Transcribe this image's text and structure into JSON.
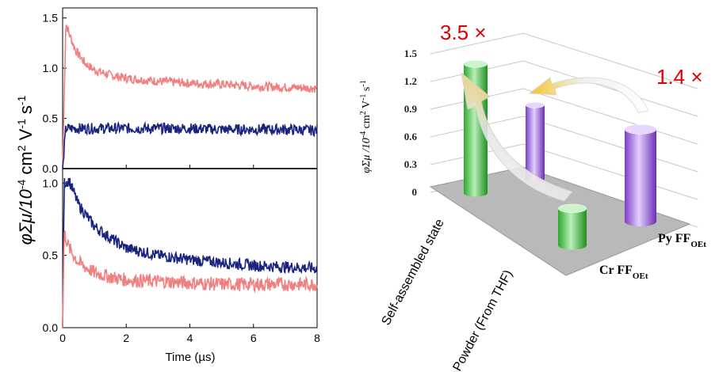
{
  "chart_data": [
    {
      "type": "line",
      "panel": "top-left",
      "xlim": [
        0,
        8
      ],
      "ylim": [
        0,
        1.6
      ],
      "yticks": [
        "0.0",
        "0.5",
        "1.0",
        "1.5"
      ],
      "series": [
        {
          "color": "#f08080",
          "x": [
            0,
            0.1,
            0.2,
            0.4,
            0.7,
            1.0,
            1.5,
            2,
            3,
            4,
            5,
            6,
            7,
            8
          ],
          "y": [
            0,
            1.45,
            1.35,
            1.18,
            1.05,
            0.98,
            0.93,
            0.9,
            0.87,
            0.85,
            0.84,
            0.82,
            0.81,
            0.8
          ]
        },
        {
          "color": "#1a237e",
          "x": [
            0,
            0.1,
            0.5,
            1,
            2,
            3,
            4,
            5,
            6,
            7,
            8
          ],
          "y": [
            0,
            0.4,
            0.4,
            0.4,
            0.4,
            0.4,
            0.4,
            0.39,
            0.39,
            0.39,
            0.38
          ]
        }
      ]
    },
    {
      "type": "line",
      "panel": "bottom-left",
      "xlim": [
        0,
        8
      ],
      "ylim": [
        0,
        1.1
      ],
      "yticks": [
        "0.0",
        "0.5",
        "1.0"
      ],
      "xticks": [
        "0",
        "2",
        "4",
        "6",
        "8"
      ],
      "xlabel": "Time (µs)",
      "series": [
        {
          "color": "#1a237e",
          "x": [
            0,
            0.05,
            0.2,
            0.5,
            1,
            1.5,
            2,
            3,
            4,
            5,
            6,
            7,
            8
          ],
          "y": [
            0,
            1.0,
            1.02,
            0.85,
            0.7,
            0.62,
            0.55,
            0.5,
            0.47,
            0.45,
            0.43,
            0.42,
            0.41
          ]
        },
        {
          "color": "#f08080",
          "x": [
            0,
            0.05,
            0.2,
            0.5,
            1,
            1.5,
            2,
            3,
            4,
            5,
            6,
            7,
            8
          ],
          "y": [
            0,
            0.66,
            0.55,
            0.45,
            0.38,
            0.35,
            0.33,
            0.32,
            0.31,
            0.3,
            0.3,
            0.3,
            0.3
          ]
        }
      ]
    },
    {
      "type": "bar",
      "panel": "right-3d",
      "zlim": [
        0,
        1.5
      ],
      "zticks": [
        "0",
        "0.3",
        "0.6",
        "0.9",
        "1.2",
        "1.5"
      ],
      "categories": [
        "Self-assembled state",
        "Powder (From THF)"
      ],
      "series": [
        {
          "name_main": "Cr FF",
          "name_sub": "OEt",
          "color": "#3cc83c",
          "values": [
            1.4,
            0.4
          ]
        },
        {
          "name_main": "Py FF",
          "name_sub": "OEt",
          "color": "#a060e0",
          "values": [
            0.8,
            1.0
          ]
        }
      ],
      "annotations": [
        "3.5 ×",
        "1.4 ×"
      ]
    }
  ],
  "shared_ylabel": {
    "pre": "φΣμ/10",
    "exp1": "-4",
    "mid": " cm",
    "exp2": "2",
    "post1": " V",
    "exp3": "-1",
    "post2": " s",
    "exp4": "-1"
  },
  "right_ylabel": {
    "pre": "φΣμ /10",
    "exp1": "-4",
    "mid": " cm",
    "exp2": "2",
    "post1": " V",
    "exp3": "-1",
    "post2": " s",
    "exp4": "-1"
  }
}
